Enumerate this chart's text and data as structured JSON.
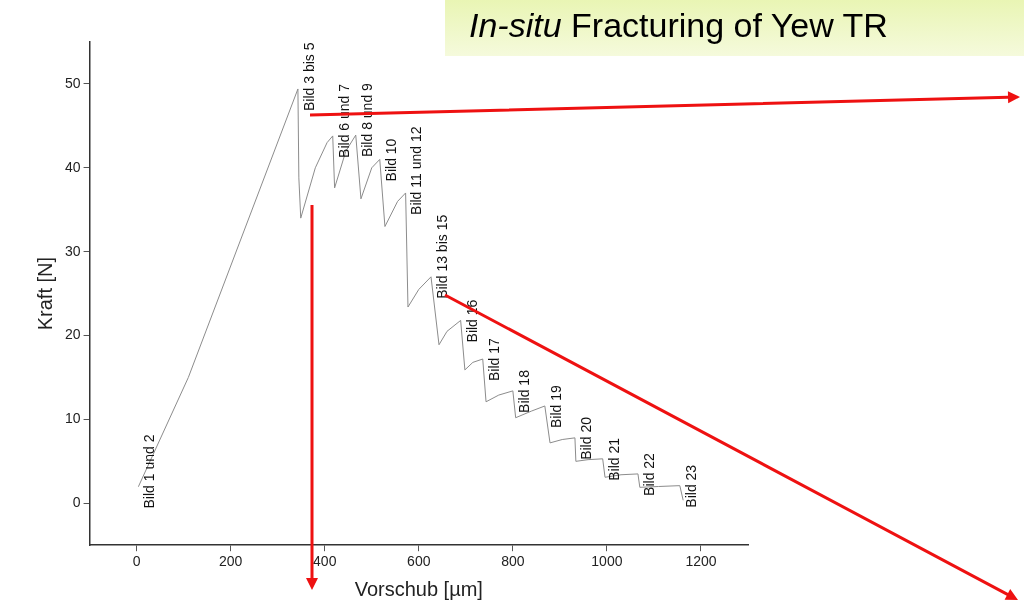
{
  "chart_data": {
    "type": "line",
    "title": "In-situ Fracturing of Yew TR",
    "xlabel": "Vorschub [µm]",
    "ylabel": "Kraft [N]",
    "xlim": [
      -100,
      1300
    ],
    "xticks": [
      0,
      200,
      400,
      600,
      800,
      1000,
      1200
    ],
    "ylim": [
      -5,
      55
    ],
    "yticks": [
      0,
      10,
      20,
      30,
      40,
      50
    ],
    "grid": false,
    "legend": false,
    "marker": "none",
    "line_style": "solid",
    "series": [
      {
        "color": "#8c8c8c",
        "x": [
          4,
          110,
          343,
          345,
          349,
          380,
          405,
          417,
          421,
          445,
          466,
          477,
          500,
          517,
          528,
          555,
          572,
          577,
          600,
          626,
          643,
          660,
          689,
          698,
          715,
          736,
          743,
          770,
          800,
          806,
          840,
          868,
          879,
          905,
          932,
          934,
          960,
          991,
          996,
          1030,
          1066,
          1070,
          1110,
          1155,
          1162
        ],
        "values": [
          2,
          15,
          49.4,
          38.8,
          34,
          40,
          43,
          43.8,
          37.6,
          42,
          43.9,
          36.3,
          40,
          41,
          33,
          36,
          37,
          23.4,
          25.5,
          27,
          18.9,
          20.5,
          21.8,
          15.9,
          16.8,
          17.2,
          12.1,
          12.9,
          13.4,
          10.2,
          11,
          11.6,
          7.2,
          7.6,
          7.8,
          5,
          5.2,
          5.3,
          3.1,
          3.4,
          3.5,
          1.9,
          2,
          2.1,
          0.4
        ]
      }
    ],
    "annotations": [
      {
        "text": "Bild 1 und 2",
        "x": 4,
        "y": 2
      },
      {
        "text": "Bild 3 bis 5",
        "x": 343,
        "y": 49.4
      },
      {
        "text": "Bild 6 und 7",
        "x": 417,
        "y": 43.8
      },
      {
        "text": "Bild 8 und 9",
        "x": 466,
        "y": 43.9
      },
      {
        "text": "Bild 10",
        "x": 517,
        "y": 41
      },
      {
        "text": "Bild 11 und 12",
        "x": 572,
        "y": 37
      },
      {
        "text": "Bild 13 bis 15",
        "x": 626,
        "y": 27
      },
      {
        "text": "Bild 16",
        "x": 689,
        "y": 21.8
      },
      {
        "text": "Bild 17",
        "x": 736,
        "y": 17.2
      },
      {
        "text": "Bild 18",
        "x": 800,
        "y": 13.4
      },
      {
        "text": "Bild 19",
        "x": 868,
        "y": 11.6
      },
      {
        "text": "Bild 20",
        "x": 932,
        "y": 7.8
      },
      {
        "text": "Bild 21",
        "x": 991,
        "y": 5.3
      },
      {
        "text": "Bild 22",
        "x": 1066,
        "y": 3.5
      },
      {
        "text": "Bild 23",
        "x": 1155,
        "y": 2.1
      }
    ]
  }
}
